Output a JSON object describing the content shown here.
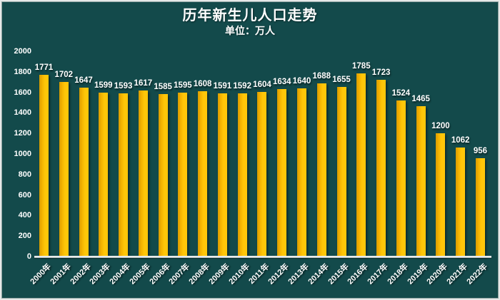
{
  "header": {
    "title": "历年新生儿人口走势",
    "subtitle": "单位：万人"
  },
  "chart_data": {
    "type": "bar",
    "title": "历年新生儿人口走势",
    "subtitle": "单位：万人",
    "categories": [
      "2000年",
      "2001年",
      "2002年",
      "2003年",
      "2004年",
      "2005年",
      "2006年",
      "2007年",
      "2008年",
      "2009年",
      "2010年",
      "2011年",
      "2012年",
      "2013年",
      "2014年",
      "2015年",
      "2016年",
      "2017年",
      "2018年",
      "2019年",
      "2020年",
      "2021年",
      "2022年"
    ],
    "values": [
      1771,
      1702,
      1647,
      1599,
      1593,
      1617,
      1585,
      1595,
      1608,
      1591,
      1592,
      1604,
      1634,
      1640,
      1688,
      1655,
      1785,
      1723,
      1524,
      1465,
      1200,
      1062,
      956
    ],
    "xlabel": "",
    "ylabel": "",
    "ylim": [
      0,
      2000
    ],
    "yticks": [
      0,
      200,
      400,
      600,
      800,
      1000,
      1200,
      1400,
      1600,
      1800,
      2000
    ],
    "grid": false,
    "legend": "none",
    "data_labels": true,
    "colors": {
      "background": "#134A4B",
      "bar": "#FFC103",
      "bar_shade": "#D89C00",
      "text": "#FFFFFF",
      "axis_line": "#DFE4E4"
    }
  }
}
